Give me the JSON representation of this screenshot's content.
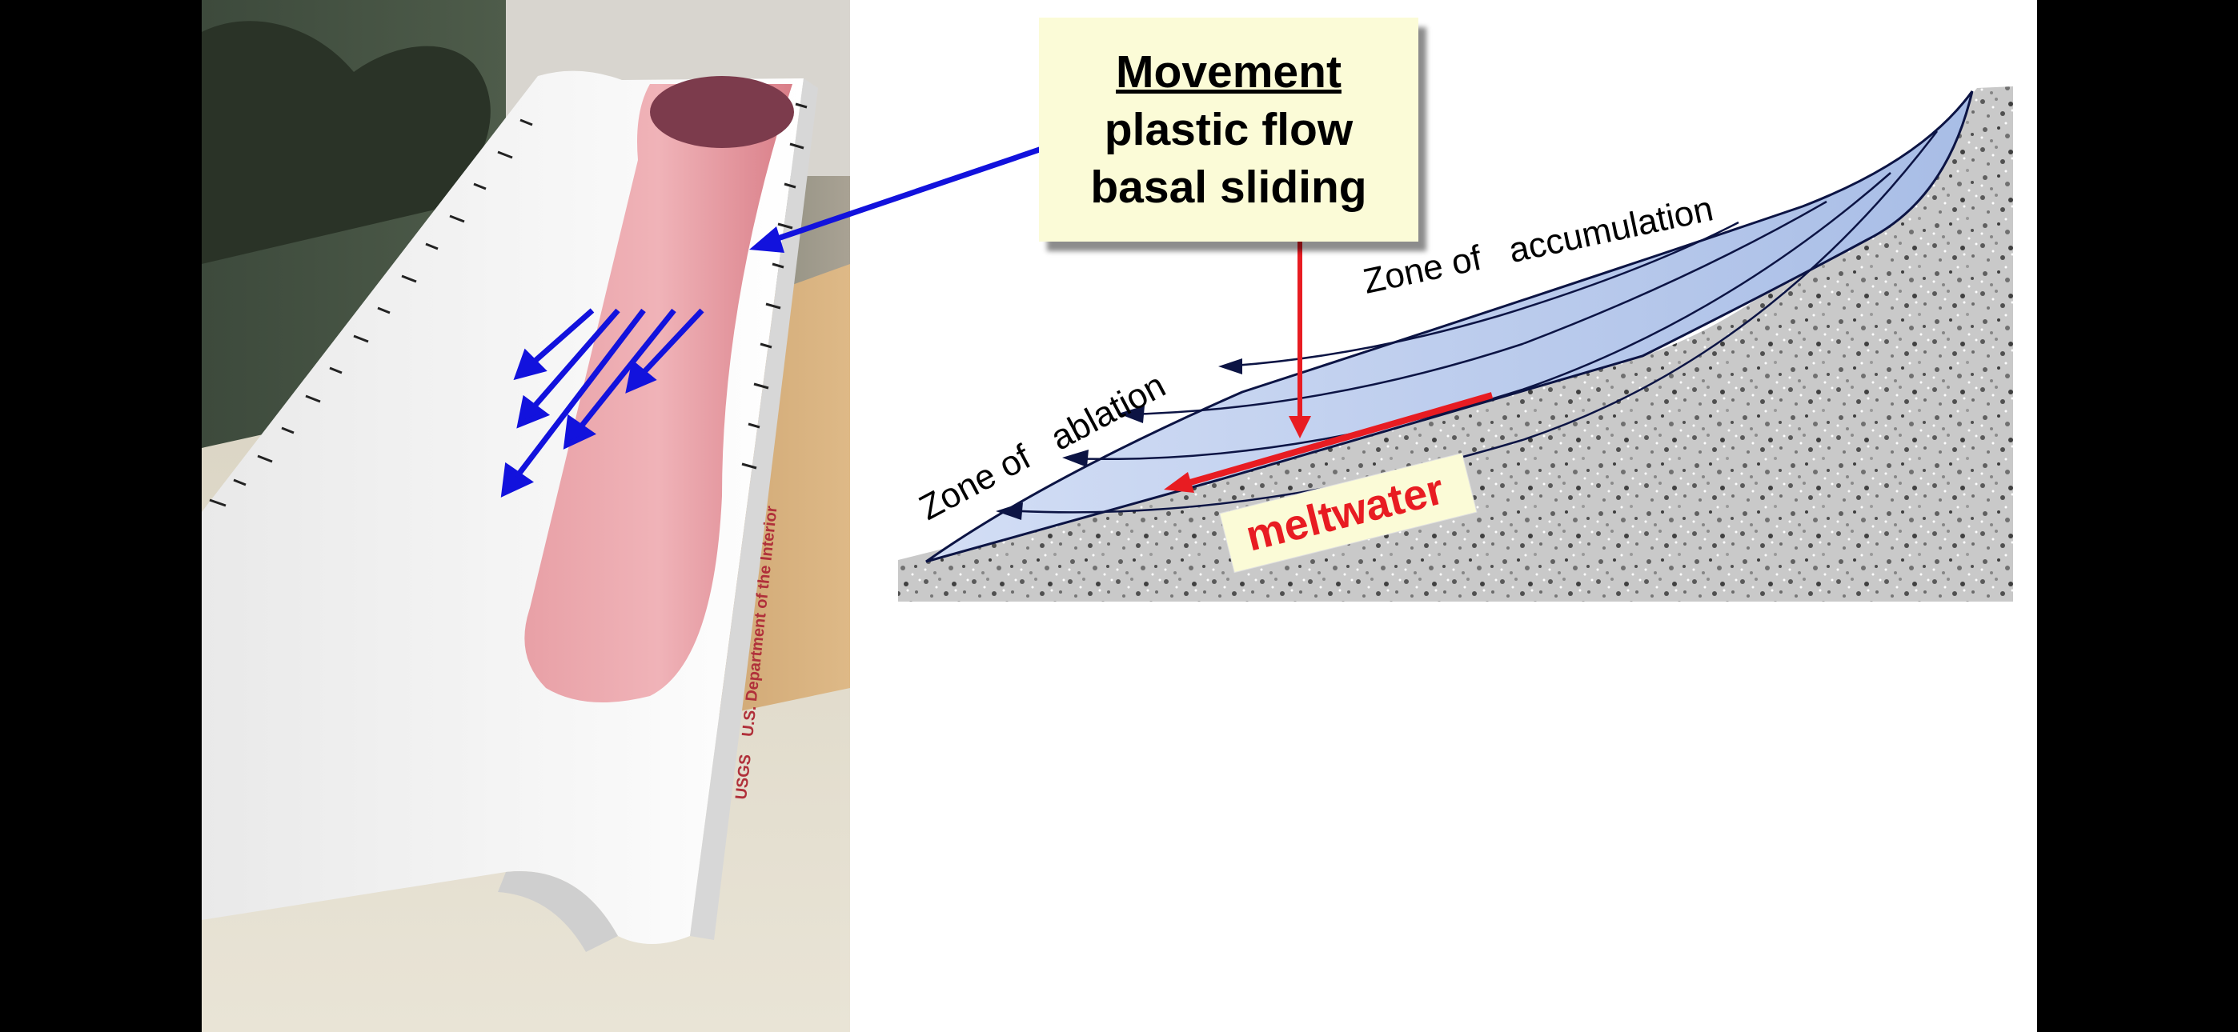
{
  "callout": {
    "title": "Movement",
    "line1": "plastic flow",
    "line2": "basal sliding"
  },
  "diagram": {
    "label_accumulation": "Zone of   accumulation",
    "label_ablation": "Zone of   ablation",
    "label_meltwater": "meltwater"
  },
  "photo": {
    "flume_text": "USGS    U.S. Department of the Interior"
  },
  "colors": {
    "arrow_blue": "#1212dd",
    "meltwater_red": "#e81c22",
    "ice_blue": "#b5c7ea",
    "putty_pink": "#e9949c",
    "callout_bg": "#fbfbd7"
  }
}
